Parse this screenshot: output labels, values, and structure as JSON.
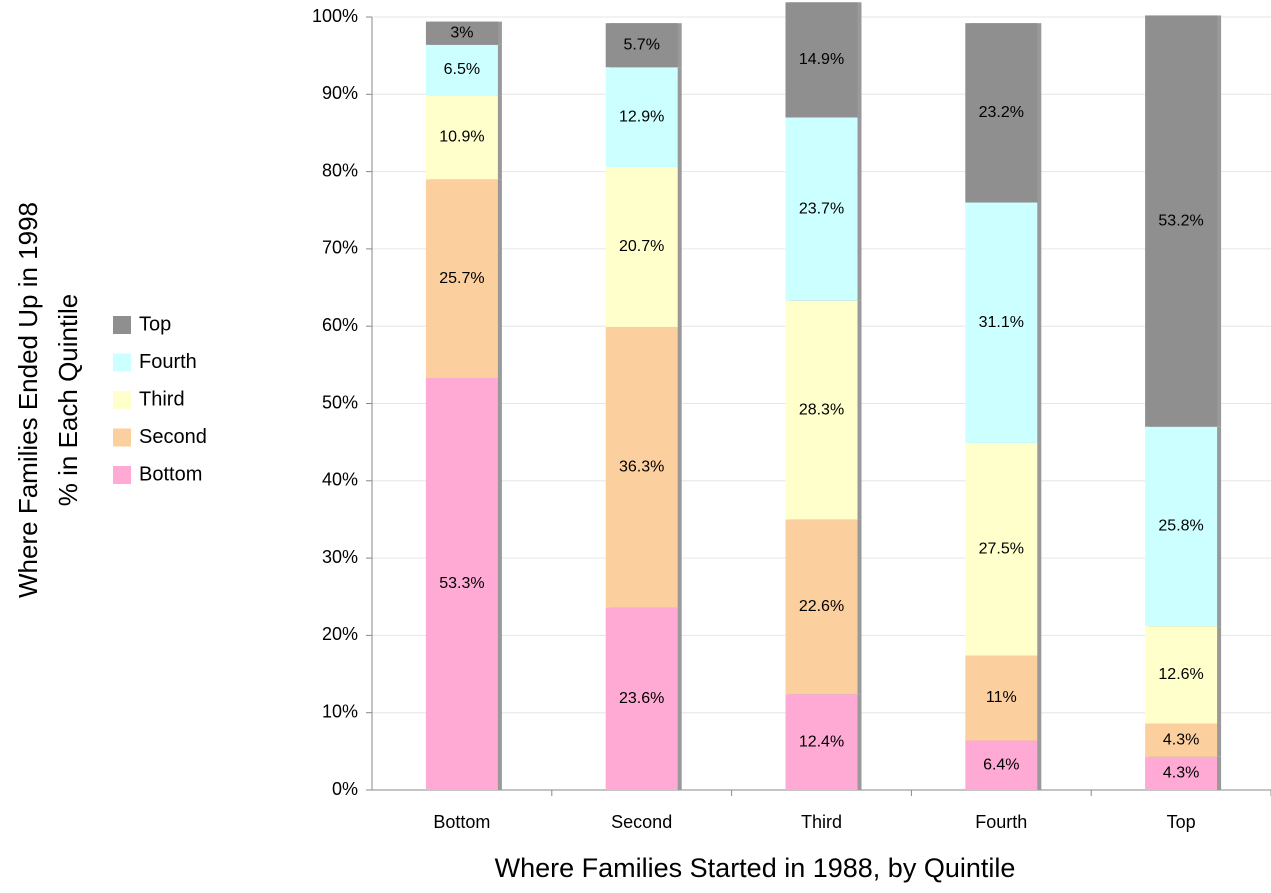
{
  "chart_data": {
    "type": "stacked_bar",
    "xlabel": "Where Families Started in 1988, by Quintile",
    "ylabel": [
      "Where Families Ended Up in 1998",
      "% in Each Quintile"
    ],
    "categories": [
      "Bottom",
      "Second",
      "Third",
      "Fourth",
      "Top"
    ],
    "series": [
      {
        "name": "Bottom",
        "color": "#ffaad4",
        "values": [
          53.3,
          23.6,
          12.4,
          6.4,
          4.3
        ],
        "value_labels": [
          "53.3%",
          "23.6%",
          "12.4%",
          "6.4%",
          "4.3%"
        ]
      },
      {
        "name": "Second",
        "color": "#fccf9f",
        "values": [
          25.7,
          36.3,
          22.6,
          11,
          4.3
        ],
        "value_labels": [
          "25.7%",
          "36.3%",
          "22.6%",
          "11%",
          "4.3%"
        ]
      },
      {
        "name": "Third",
        "color": "#ffffcc",
        "values": [
          10.9,
          20.7,
          28.3,
          27.5,
          12.6
        ],
        "value_labels": [
          "10.9%",
          "20.7%",
          "28.3%",
          "27.5%",
          "12.6%"
        ]
      },
      {
        "name": "Fourth",
        "color": "#ccffff",
        "values": [
          6.5,
          12.9,
          23.7,
          31.1,
          25.8
        ],
        "value_labels": [
          "6.5%",
          "12.9%",
          "23.7%",
          "31.1%",
          "25.8%"
        ]
      },
      {
        "name": "Top",
        "color": "#8f8f8f",
        "values": [
          3,
          5.7,
          14.9,
          23.2,
          53.2
        ],
        "value_labels": [
          "3%",
          "5.7%",
          "14.9%",
          "23.2%",
          "53.2%"
        ]
      }
    ],
    "ylim": [
      0,
      100
    ],
    "yticks": [
      {
        "value": 0,
        "label": "0%"
      },
      {
        "value": 10,
        "label": "10%"
      },
      {
        "value": 20,
        "label": "20%"
      },
      {
        "value": 30,
        "label": "30%"
      },
      {
        "value": 40,
        "label": "40%"
      },
      {
        "value": 50,
        "label": "50%"
      },
      {
        "value": 60,
        "label": "60%"
      },
      {
        "value": 70,
        "label": "70%"
      },
      {
        "value": 80,
        "label": "80%"
      },
      {
        "value": 90,
        "label": "90%"
      },
      {
        "value": 100,
        "label": "100%"
      }
    ],
    "grid": true,
    "legend": "left"
  }
}
